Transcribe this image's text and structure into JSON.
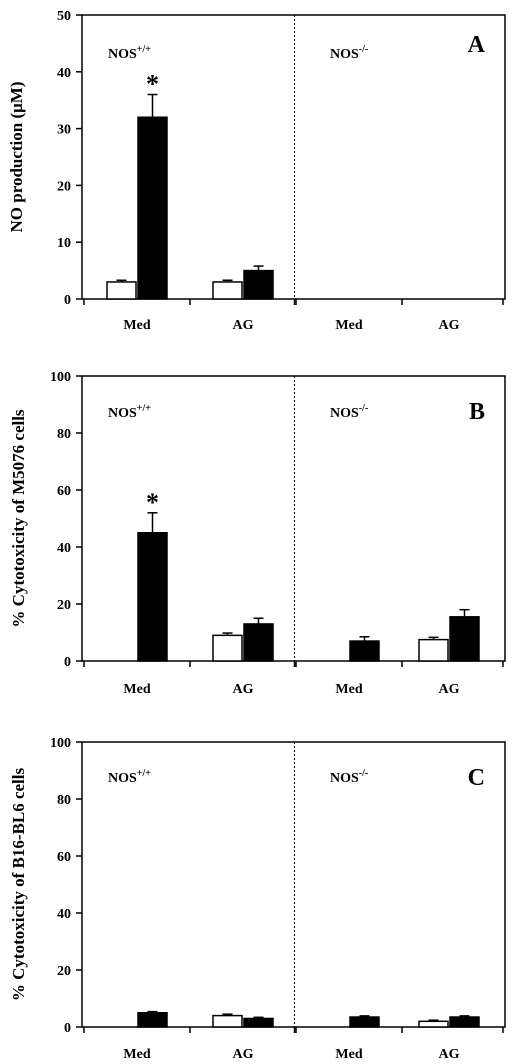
{
  "chart_data": [
    {
      "type": "bar",
      "panel": "A",
      "ylabel": "NO production (μM)",
      "ylim": [
        0,
        50
      ],
      "yticks": [
        0,
        10,
        20,
        30,
        40,
        50
      ],
      "groups": [
        {
          "label": "NOS",
          "sup": "+/+",
          "categories": [
            "Med",
            "AG"
          ]
        },
        {
          "label": "NOS",
          "sup": "-/-",
          "categories": [
            "Med",
            "AG"
          ]
        }
      ],
      "series": [
        {
          "fill": "#ffffff",
          "values": [
            3.0,
            3.0,
            0,
            0
          ],
          "errors": [
            0.3,
            0.3,
            0,
            0
          ]
        },
        {
          "fill": "#000000",
          "values": [
            32.0,
            5.0,
            0,
            0
          ],
          "errors": [
            4.0,
            0.8,
            0,
            0
          ]
        }
      ],
      "annotations": [
        {
          "text": "*",
          "category_index": 0,
          "series_index": 1
        }
      ]
    },
    {
      "type": "bar",
      "panel": "B",
      "ylabel": "% Cytotoxicity of M5076 cells",
      "ylim": [
        0,
        100
      ],
      "yticks": [
        0,
        20,
        40,
        60,
        80,
        100
      ],
      "groups": [
        {
          "label": "NOS",
          "sup": "+/+",
          "categories": [
            "Med",
            "AG"
          ]
        },
        {
          "label": "NOS",
          "sup": "-/-",
          "categories": [
            "Med",
            "AG"
          ]
        }
      ],
      "series": [
        {
          "fill": "#ffffff",
          "values": [
            0,
            9.0,
            0,
            7.5
          ],
          "errors": [
            0,
            0.8,
            0,
            0.8
          ]
        },
        {
          "fill": "#000000",
          "values": [
            45.0,
            13.0,
            7.0,
            15.5
          ],
          "errors": [
            7.0,
            2.0,
            1.5,
            2.5
          ]
        }
      ],
      "annotations": [
        {
          "text": "*",
          "category_index": 0,
          "series_index": 1
        }
      ]
    },
    {
      "type": "bar",
      "panel": "C",
      "ylabel": "% Cytotoxicity of B16-BL6 cells",
      "ylim": [
        0,
        100
      ],
      "yticks": [
        0,
        20,
        40,
        60,
        80,
        100
      ],
      "groups": [
        {
          "label": "NOS",
          "sup": "+/+",
          "categories": [
            "Med",
            "AG"
          ]
        },
        {
          "label": "NOS",
          "sup": "-/-",
          "categories": [
            "Med",
            "AG"
          ]
        }
      ],
      "series": [
        {
          "fill": "#ffffff",
          "values": [
            0,
            4.0,
            0,
            2.0
          ],
          "errors": [
            0,
            0.5,
            0,
            0.4
          ]
        },
        {
          "fill": "#000000",
          "values": [
            5.0,
            3.0,
            3.5,
            3.5
          ],
          "errors": [
            0.4,
            0.4,
            0.4,
            0.4
          ]
        }
      ],
      "annotations": []
    }
  ]
}
